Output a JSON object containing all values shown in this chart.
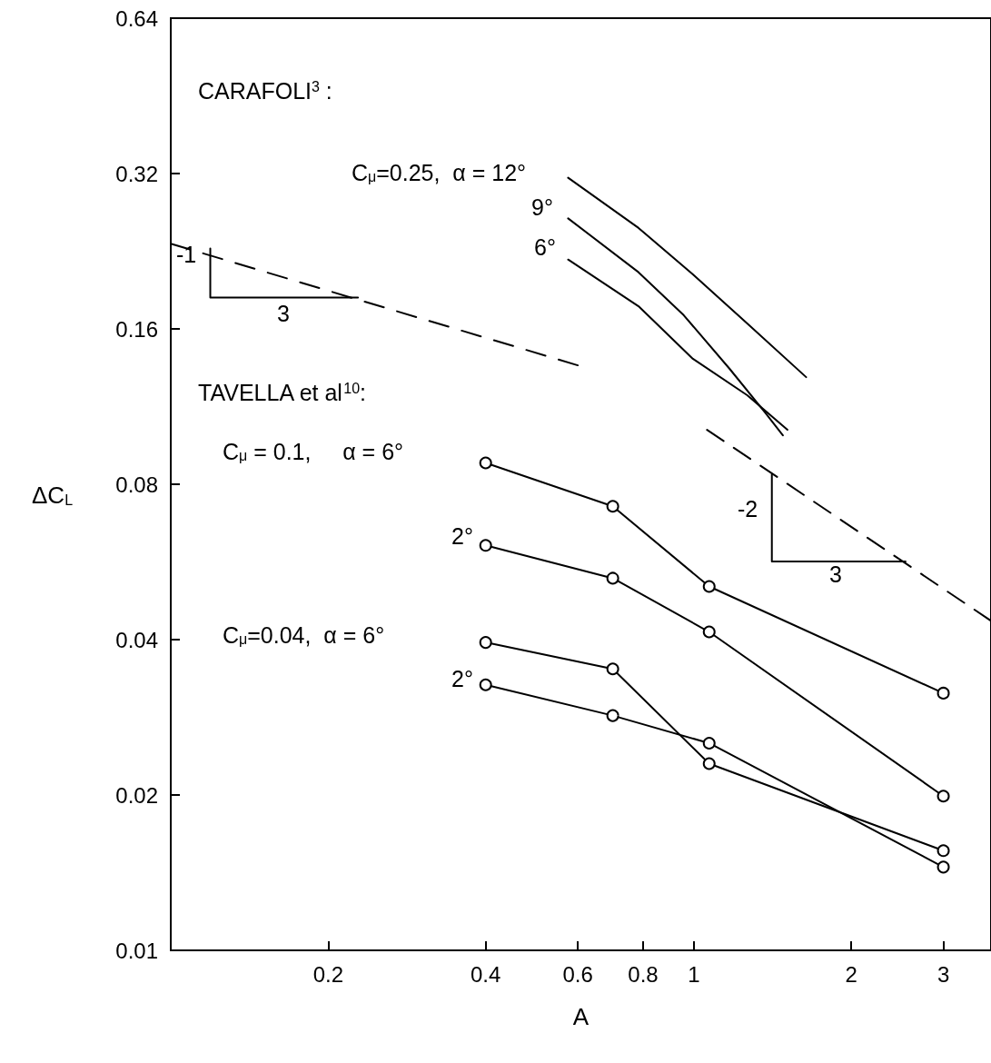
{
  "chart_data": {
    "type": "line",
    "xlabel": "A",
    "ylabel": "ΔC$_{L}$",
    "log": "xy",
    "grid": false,
    "xlim": [
      0.1,
      3.7
    ],
    "xticks": [
      0.2,
      0.4,
      0.6,
      0.8,
      1,
      2,
      3
    ],
    "ylim": [
      0.01,
      0.64
    ],
    "yticks": [
      0.01,
      0.02,
      0.04,
      0.08,
      0.16,
      0.32,
      0.64
    ],
    "series": [
      {
        "color": "#000000",
        "marker": "none",
        "line_style": "solid",
        "x": [
          0.575,
          0.784,
          0.996,
          1.265,
          1.64
        ],
        "values": [
          0.314,
          0.251,
          0.204,
          0.164,
          0.129
        ]
      },
      {
        "color": "#000000",
        "marker": "none",
        "line_style": "solid",
        "x": [
          0.575,
          0.784,
          0.957,
          1.17,
          1.37,
          1.48
        ],
        "values": [
          0.262,
          0.206,
          0.17,
          0.134,
          0.11,
          0.0995
        ]
      },
      {
        "color": "#000000",
        "marker": "none",
        "line_style": "solid",
        "x": [
          0.575,
          0.784,
          0.996,
          1.265,
          1.51
        ],
        "values": [
          0.218,
          0.177,
          0.14,
          0.119,
          0.102
        ]
      },
      {
        "color": "#000000",
        "marker": "circle",
        "line_style": "solid",
        "x": [
          0.4,
          0.7,
          1.07,
          3
        ],
        "values": [
          0.088,
          0.0725,
          0.0507,
          0.0315
        ]
      },
      {
        "color": "#000000",
        "marker": "circle",
        "line_style": "solid",
        "x": [
          0.4,
          0.7,
          1.07,
          3
        ],
        "values": [
          0.0609,
          0.0526,
          0.0414,
          0.0199
        ]
      },
      {
        "color": "#000000",
        "marker": "circle",
        "line_style": "solid",
        "x": [
          0.4,
          0.7,
          1.07,
          3
        ],
        "values": [
          0.0395,
          0.0351,
          0.023,
          0.0156
        ]
      },
      {
        "color": "#000000",
        "marker": "circle",
        "line_style": "solid",
        "x": [
          0.4,
          0.7,
          1.07,
          3
        ],
        "values": [
          0.0327,
          0.0285,
          0.0252,
          0.0145
        ]
      },
      {
        "color": "#000000",
        "marker": "none",
        "line_style": "dashed",
        "x": [
          0.1,
          0.6
        ],
        "values": [
          0.234,
          0.136
        ]
      },
      {
        "color": "#000000",
        "marker": "none",
        "line_style": "dashed",
        "x": [
          1.06,
          3.7
        ],
        "values": [
          0.102,
          0.0435
        ]
      },
      {
        "color": "#000000",
        "marker": "none",
        "line_style": "solid",
        "x": [
          0.119,
          0.119,
          0.228
        ],
        "values": [
          0.229,
          0.184,
          0.184
        ]
      },
      {
        "color": "#000000",
        "marker": "none",
        "line_style": "solid",
        "x": [
          1.41,
          1.41,
          2.54
        ],
        "values": [
          0.0836,
          0.0567,
          0.0567
        ]
      }
    ],
    "annotations": [
      "CARAFOLI$^{3}$ :",
      "C$_{μ}$=0.25,  α = 12°",
      "9°",
      "6°",
      "TAVELLA et al$^{10}$:",
      "C$_{μ}$ = 0.1,     α = 6°",
      "2°",
      "C$_{μ}$=0.04,  α = 6°",
      "2°",
      "-1",
      "3",
      "-2",
      "3"
    ]
  }
}
